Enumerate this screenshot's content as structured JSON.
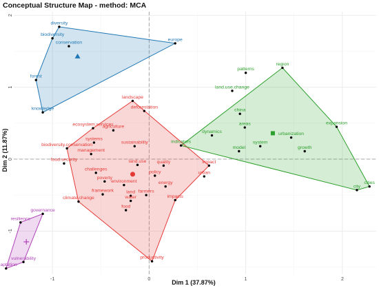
{
  "chart_data": {
    "type": "scatter",
    "title": "Conceptual Structure Map - method: MCA",
    "xlabel": "Dim 1 (37.87%)",
    "ylabel": "Dim 2 (11.87%)",
    "xlim": [
      -1.4,
      2.35
    ],
    "ylim": [
      -1.6,
      2.05
    ],
    "xticks": [
      -1,
      0,
      1,
      2
    ],
    "yticks": [
      -1,
      0,
      1,
      2
    ],
    "grid": true,
    "reference_lines": {
      "x": 0,
      "y": 0
    },
    "clusters": [
      {
        "color": "#1f77b4",
        "centroid": {
          "x": -0.74,
          "y": 1.43,
          "shape": "triangle"
        },
        "hull": [
          "biodiversity",
          "diversity",
          "europe",
          "knowledge",
          "forest"
        ],
        "points": [
          {
            "label": "diversity",
            "x": -0.93,
            "y": 1.84
          },
          {
            "label": "biodiversity",
            "x": -1.0,
            "y": 1.68
          },
          {
            "label": "europe",
            "x": 0.27,
            "y": 1.61
          },
          {
            "label": "conservation",
            "x": -0.83,
            "y": 1.57
          },
          {
            "label": "forest",
            "x": -1.17,
            "y": 1.1
          },
          {
            "label": "knowledge",
            "x": -1.1,
            "y": 0.65
          }
        ]
      },
      {
        "color": "#e53935",
        "centroid": {
          "x": -0.17,
          "y": -0.21,
          "shape": "circle"
        },
        "hull": [
          "landscape",
          "impact",
          "impacts",
          "productivity",
          "climate.change",
          "biodiversity.conservation",
          "ecosystem.services"
        ],
        "points": [
          {
            "label": "landscape",
            "x": -0.17,
            "y": 0.81
          },
          {
            "label": "deforestation",
            "x": -0.05,
            "y": 0.67
          },
          {
            "label": "ecosystem.services",
            "x": -0.58,
            "y": 0.43
          },
          {
            "label": "agriculture",
            "x": -0.37,
            "y": 0.4
          },
          {
            "label": "systems",
            "x": -0.57,
            "y": 0.23
          },
          {
            "label": "sustainability",
            "x": -0.15,
            "y": 0.18
          },
          {
            "label": "biodiversity.conservation",
            "x": -0.85,
            "y": 0.15
          },
          {
            "label": "management",
            "x": -0.6,
            "y": 0.07
          },
          {
            "label": "food.security",
            "x": -0.88,
            "y": -0.06
          },
          {
            "label": "quality",
            "x": 0.15,
            "y": -0.09
          },
          {
            "label": "land.use",
            "x": -0.12,
            "y": -0.08
          },
          {
            "label": "challenges",
            "x": -0.55,
            "y": -0.19
          },
          {
            "label": "policy",
            "x": 0.06,
            "y": -0.23
          },
          {
            "label": "impact",
            "x": 0.62,
            "y": -0.09
          },
          {
            "label": "urban",
            "x": 0.57,
            "y": -0.24
          },
          {
            "label": "poverty",
            "x": -0.46,
            "y": -0.31
          },
          {
            "label": "environment",
            "x": -0.26,
            "y": -0.36
          },
          {
            "label": "energy",
            "x": 0.17,
            "y": -0.38
          },
          {
            "label": "framework",
            "x": -0.48,
            "y": -0.49
          },
          {
            "label": "farmers",
            "x": -0.03,
            "y": -0.5
          },
          {
            "label": "land",
            "x": -0.19,
            "y": -0.51
          },
          {
            "label": "water",
            "x": -0.19,
            "y": -0.58
          },
          {
            "label": "impacts",
            "x": 0.27,
            "y": -0.57
          },
          {
            "label": "climate.change",
            "x": -0.73,
            "y": -0.59
          },
          {
            "label": "food",
            "x": -0.24,
            "y": -0.71
          },
          {
            "label": "productivity",
            "x": 0.03,
            "y": -1.42
          }
        ]
      },
      {
        "color": "#2ca02c",
        "centroid": {
          "x": 1.28,
          "y": 0.36,
          "shape": "square"
        },
        "hull": [
          "region",
          "expansion",
          "cities",
          "city",
          "indicators"
        ],
        "points": [
          {
            "label": "region",
            "x": 1.38,
            "y": 1.27
          },
          {
            "label": "patterns",
            "x": 1.0,
            "y": 1.2
          },
          {
            "label": "land.use.change",
            "x": 0.86,
            "y": 0.95
          },
          {
            "label": "china",
            "x": 0.94,
            "y": 0.63
          },
          {
            "label": "areas",
            "x": 0.99,
            "y": 0.44
          },
          {
            "label": "dynamics",
            "x": 0.65,
            "y": 0.33
          },
          {
            "label": "urbanization",
            "x": 1.47,
            "y": 0.3
          },
          {
            "label": "expansion",
            "x": 1.94,
            "y": 0.45
          },
          {
            "label": "model",
            "x": 0.93,
            "y": 0.11
          },
          {
            "label": "system",
            "x": 1.15,
            "y": 0.18
          },
          {
            "label": "indicators",
            "x": 0.33,
            "y": 0.19
          },
          {
            "label": "growth",
            "x": 1.61,
            "y": 0.11
          },
          {
            "label": "cities",
            "x": 2.28,
            "y": -0.38
          },
          {
            "label": "city",
            "x": 2.15,
            "y": -0.43
          }
        ]
      },
      {
        "color": "#b044b8",
        "centroid": {
          "x": -1.27,
          "y": -1.15,
          "shape": "plus"
        },
        "hull": [
          "governance",
          "vulnerability",
          "adaptation",
          "resilience"
        ],
        "points": [
          {
            "label": "governance",
            "x": -1.1,
            "y": -0.76
          },
          {
            "label": "resilience",
            "x": -1.33,
            "y": -0.88
          },
          {
            "label": "vulnerability",
            "x": -1.3,
            "y": -1.43
          },
          {
            "label": "adaptation",
            "x": -1.48,
            "y": -1.52
          }
        ]
      }
    ]
  }
}
